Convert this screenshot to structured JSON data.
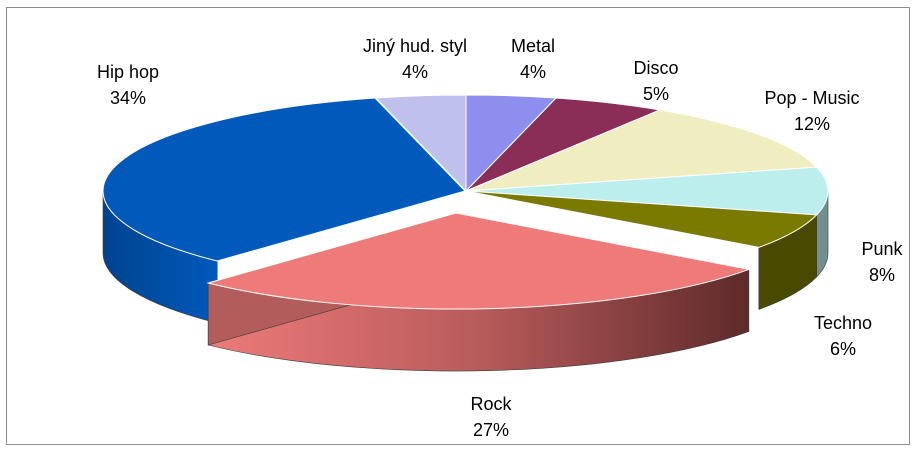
{
  "chart_data": {
    "type": "pie",
    "title": "",
    "slices": [
      {
        "label": "Metal",
        "value": 4,
        "display": "4%",
        "color": "#8E8EEE"
      },
      {
        "label": "Disco",
        "value": 5,
        "display": "5%",
        "color": "#8B2E57"
      },
      {
        "label": "Pop - Music",
        "value": 12,
        "display": "12%",
        "color": "#F0EDC0"
      },
      {
        "label": "Punk",
        "value": 8,
        "display": "8%",
        "color": "#BDEEEE"
      },
      {
        "label": "Techno",
        "value": 6,
        "display": "6%",
        "color": "#7A7A00"
      },
      {
        "label": "Rock",
        "value": 27,
        "display": "27%",
        "color": "#EE7A7A"
      },
      {
        "label": "Hip hop",
        "value": 34,
        "display": "34%",
        "color": "#0059BB"
      },
      {
        "label": "Jiný hud. styl",
        "value": 4,
        "display": "4%",
        "color": "#C0C0EC"
      }
    ],
    "style": "3d-exploded",
    "legend": "none"
  }
}
